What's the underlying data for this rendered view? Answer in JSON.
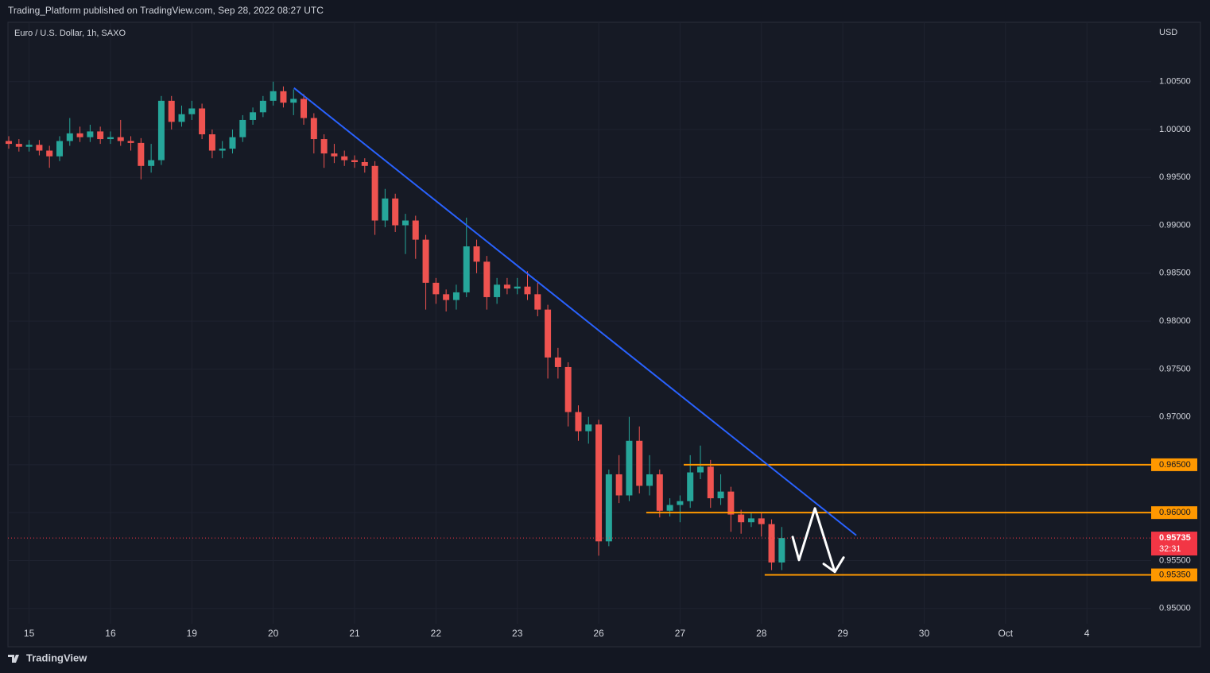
{
  "chart_data": {
    "type": "candlestick",
    "header": "Trading_Platform published on TradingView.com, Sep 28, 2022 08:27 UTC",
    "title": "Euro / U.S. Dollar, 1h, SAXO",
    "currency": "USD",
    "footer": "TradingView",
    "up_color": "#26a69a",
    "down_color": "#ef5350",
    "grid": true,
    "xlim": [
      -0.26,
      13.79
    ],
    "ylim": [
      0.9484,
      1.0112
    ],
    "xticks": [
      {
        "value": 0,
        "label": "15"
      },
      {
        "value": 1,
        "label": "16"
      },
      {
        "value": 2,
        "label": "19"
      },
      {
        "value": 3,
        "label": "20"
      },
      {
        "value": 4,
        "label": "21"
      },
      {
        "value": 5,
        "label": "22"
      },
      {
        "value": 6,
        "label": "23"
      },
      {
        "value": 7,
        "label": "26"
      },
      {
        "value": 8,
        "label": "27"
      },
      {
        "value": 9,
        "label": "28"
      },
      {
        "value": 10,
        "label": "29"
      },
      {
        "value": 11,
        "label": "30"
      },
      {
        "value": 12,
        "label": "Oct"
      },
      {
        "value": 13,
        "label": "4"
      }
    ],
    "yticks": [
      {
        "value": 0.95,
        "label": "0.95000"
      },
      {
        "value": 0.955,
        "label": "0.95500"
      },
      {
        "value": 0.96,
        "label": "0.96000"
      },
      {
        "value": 0.965,
        "label": "0.96500"
      },
      {
        "value": 0.97,
        "label": "0.97000"
      },
      {
        "value": 0.975,
        "label": "0.97500"
      },
      {
        "value": 0.98,
        "label": "0.98000"
      },
      {
        "value": 0.985,
        "label": "0.98500"
      },
      {
        "value": 0.99,
        "label": "0.99000"
      },
      {
        "value": 0.995,
        "label": "0.99500"
      },
      {
        "value": 1.0,
        "label": "1.00000"
      },
      {
        "value": 1.005,
        "label": "1.00500"
      }
    ],
    "x": [
      -0.25,
      -0.125,
      0,
      0.125,
      0.25,
      0.375,
      0.5,
      0.625,
      0.75,
      0.875,
      1,
      1.125,
      1.25,
      1.375,
      1.5,
      1.625,
      1.75,
      1.875,
      2,
      2.125,
      2.25,
      2.375,
      2.5,
      2.625,
      2.75,
      2.875,
      3,
      3.125,
      3.25,
      3.375,
      3.5,
      3.625,
      3.75,
      3.875,
      4,
      4.125,
      4.25,
      4.375,
      4.5,
      4.625,
      4.75,
      4.875,
      5,
      5.125,
      5.25,
      5.375,
      5.5,
      5.625,
      5.75,
      5.875,
      6,
      6.125,
      6.25,
      6.375,
      6.5,
      6.625,
      6.75,
      6.875,
      7,
      7.125,
      7.25,
      7.375,
      7.5,
      7.625,
      7.75,
      7.875,
      8,
      8.125,
      8.25,
      8.375,
      8.5,
      8.625,
      8.75,
      8.875,
      9,
      9.125,
      9.25
    ],
    "open": [
      0.9988,
      0.9985,
      0.9982,
      0.9984,
      0.9978,
      0.9972,
      0.9988,
      0.9996,
      0.9992,
      0.9998,
      0.999,
      0.9992,
      0.9988,
      0.9986,
      0.9962,
      0.9968,
      1.003,
      1.0008,
      1.0016,
      1.0022,
      0.9995,
      0.9978,
      0.998,
      0.9992,
      1.001,
      1.0018,
      1.003,
      1.004,
      1.0028,
      1.0032,
      1.0012,
      0.999,
      0.9975,
      0.9972,
      0.9968,
      0.9966,
      0.9962,
      0.9905,
      0.9928,
      0.99,
      0.9905,
      0.9885,
      0.984,
      0.9828,
      0.9822,
      0.983,
      0.9878,
      0.9862,
      0.9825,
      0.9838,
      0.9834,
      0.9836,
      0.9828,
      0.9812,
      0.9762,
      0.9752,
      0.9705,
      0.9685,
      0.9692,
      0.957,
      0.964,
      0.9618,
      0.9675,
      0.9628,
      0.964,
      0.9602,
      0.9608,
      0.9612,
      0.9642,
      0.9648,
      0.9615,
      0.9622,
      0.9598,
      0.959,
      0.9594,
      0.9588,
      0.9548
    ],
    "high": [
      0.9993,
      0.999,
      0.9989,
      0.9989,
      0.9983,
      0.9993,
      1.0012,
      1.0003,
      1.0005,
      1.0003,
      0.9998,
      1.001,
      0.9993,
      0.9991,
      0.9985,
      1.0035,
      1.0035,
      1.0025,
      1.003,
      1.0027,
      1.0,
      0.9988,
      1.0,
      1.0015,
      1.0023,
      1.0035,
      1.005,
      1.0045,
      1.0042,
      1.0037,
      1.0017,
      0.9995,
      0.9985,
      0.9978,
      0.9973,
      0.997,
      0.9967,
      0.9938,
      0.9933,
      0.9912,
      0.991,
      0.989,
      0.9845,
      0.9833,
      0.9838,
      0.9908,
      0.9885,
      0.9868,
      0.9845,
      0.9845,
      0.9845,
      0.9852,
      0.984,
      0.9817,
      0.9772,
      0.9757,
      0.9712,
      0.97,
      0.9697,
      0.9645,
      0.966,
      0.97,
      0.969,
      0.966,
      0.9645,
      0.9615,
      0.9618,
      0.966,
      0.967,
      0.9655,
      0.964,
      0.9627,
      0.9603,
      0.96,
      0.96,
      0.9593,
      0.9585
    ],
    "low": [
      0.998,
      0.9977,
      0.9977,
      0.9973,
      0.996,
      0.9967,
      0.9983,
      0.9987,
      0.9987,
      0.9985,
      0.9985,
      0.9983,
      0.9978,
      0.9948,
      0.9955,
      0.9963,
      1.0,
      1.0003,
      1.001,
      0.999,
      0.997,
      0.997,
      0.9975,
      0.9987,
      1.0005,
      1.0013,
      1.0025,
      1.0023,
      1.0015,
      1.0005,
      0.9975,
      0.996,
      0.9965,
      0.9962,
      0.996,
      0.9955,
      0.989,
      0.9898,
      0.9893,
      0.987,
      0.9865,
      0.9812,
      0.9818,
      0.981,
      0.9812,
      0.9825,
      0.985,
      0.9812,
      0.9818,
      0.9828,
      0.9828,
      0.9822,
      0.9805,
      0.974,
      0.974,
      0.969,
      0.9675,
      0.9672,
      0.9555,
      0.9565,
      0.961,
      0.9612,
      0.962,
      0.9618,
      0.9595,
      0.9596,
      0.959,
      0.9605,
      0.9635,
      0.9605,
      0.9608,
      0.958,
      0.9578,
      0.9585,
      0.9575,
      0.954,
      0.954
    ],
    "close": [
      0.9985,
      0.9982,
      0.9984,
      0.9978,
      0.9972,
      0.9988,
      0.9996,
      0.9992,
      0.9998,
      0.999,
      0.9992,
      0.9988,
      0.9986,
      0.9962,
      0.9968,
      1.003,
      1.0008,
      1.0016,
      1.0022,
      0.9995,
      0.9978,
      0.998,
      0.9992,
      1.001,
      1.0018,
      1.003,
      1.004,
      1.0028,
      1.0032,
      1.0012,
      0.999,
      0.9975,
      0.9972,
      0.9968,
      0.9966,
      0.9962,
      0.9905,
      0.9928,
      0.99,
      0.9905,
      0.9885,
      0.984,
      0.9828,
      0.9822,
      0.983,
      0.9878,
      0.9862,
      0.9825,
      0.9838,
      0.9834,
      0.9836,
      0.9828,
      0.9812,
      0.9762,
      0.9752,
      0.9705,
      0.9685,
      0.9692,
      0.957,
      0.964,
      0.9618,
      0.9675,
      0.9628,
      0.964,
      0.9602,
      0.9608,
      0.9612,
      0.9642,
      0.9648,
      0.9615,
      0.9622,
      0.9598,
      0.959,
      0.9594,
      0.9588,
      0.9548,
      0.95735
    ],
    "trendline": {
      "color": "#2962ff",
      "x": [
        3.255,
        10.166
      ],
      "y": [
        1.00434,
        0.95763
      ]
    },
    "levels": [
      {
        "value": 0.965,
        "label": "0.96500",
        "x_start": 8.045,
        "color": "#ff9800"
      },
      {
        "value": 0.96,
        "label": "0.96000",
        "x_start": 7.585,
        "color": "#ff9800"
      },
      {
        "value": 0.9535,
        "label": "0.95350",
        "x_start": 9.04,
        "color": "#ff9800"
      }
    ],
    "last_price": {
      "value": 0.95735,
      "label": "0.95735",
      "countdown": "32:31",
      "color": "#f23645"
    },
    "projection": {
      "color": "#ffffff",
      "x": [
        9.384,
        9.462,
        9.658,
        9.902
      ],
      "y": [
        0.95746,
        0.95505,
        0.96045,
        0.95382
      ]
    }
  }
}
